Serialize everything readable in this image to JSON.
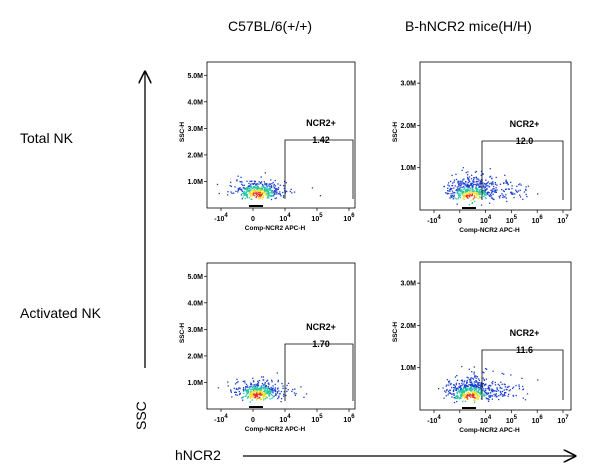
{
  "columns": [
    "C57BL/6(+/+)",
    "B-hNCR2 mice(H/H)"
  ],
  "rows": [
    "Total NK",
    "Activated NK"
  ],
  "y_axis_title": "SSC",
  "x_axis_title": "hNCR2",
  "colors": {
    "dots_low": "#1a3fd0",
    "dots_mid": "#22c7a0",
    "dots_hi": "#f0e020",
    "dots_core": "#e83020"
  },
  "chart_data": [
    {
      "type": "scatter",
      "panel": "C57BL/6(+/+) - Total NK",
      "xlabel": "Comp-NCR2 APC-H",
      "ylabel": "SSC-H",
      "x_ticks": [
        "-10^4",
        "0",
        "10^4",
        "10^5",
        "10^6"
      ],
      "y_ticks": [
        "5.0M",
        "4.0M",
        "3.0M",
        "2.0M",
        "1.0M"
      ],
      "ylim": [
        0,
        5500000
      ],
      "gate_name": "NCR2+",
      "gate_value": "1.42"
    },
    {
      "type": "scatter",
      "panel": "B-hNCR2 mice(H/H) - Total NK",
      "xlabel": "Comp-NCR2 APC-H",
      "ylabel": "SSC-H",
      "x_ticks": [
        "-10^4",
        "0",
        "10^4",
        "10^5",
        "10^6",
        "10^7"
      ],
      "y_ticks": [
        "3.0M",
        "2.0M",
        "1.0M"
      ],
      "ylim": [
        0,
        3500000
      ],
      "gate_name": "NCR2+",
      "gate_value": "12.0"
    },
    {
      "type": "scatter",
      "panel": "C57BL/6(+/+) - Activated NK",
      "xlabel": "Comp-NCR2 APC-H",
      "ylabel": "SSC-H",
      "x_ticks": [
        "-10^4",
        "0",
        "10^4",
        "10^5",
        "10^6"
      ],
      "y_ticks": [
        "5.0M",
        "4.0M",
        "3.0M",
        "2.0M",
        "1.0M"
      ],
      "ylim": [
        0,
        5500000
      ],
      "gate_name": "NCR2+",
      "gate_value": "1.70"
    },
    {
      "type": "scatter",
      "panel": "B-hNCR2 mice(H/H) - Activated NK",
      "xlabel": "Comp-NCR2 APC-H",
      "ylabel": "SSC-H",
      "x_ticks": [
        "-10^4",
        "0",
        "10^4",
        "10^5",
        "10^6",
        "10^7"
      ],
      "y_ticks": [
        "3.0M",
        "2.0M",
        "1.0M"
      ],
      "ylim": [
        0,
        3500000
      ],
      "gate_name": "NCR2+",
      "gate_value": "11.6"
    }
  ]
}
